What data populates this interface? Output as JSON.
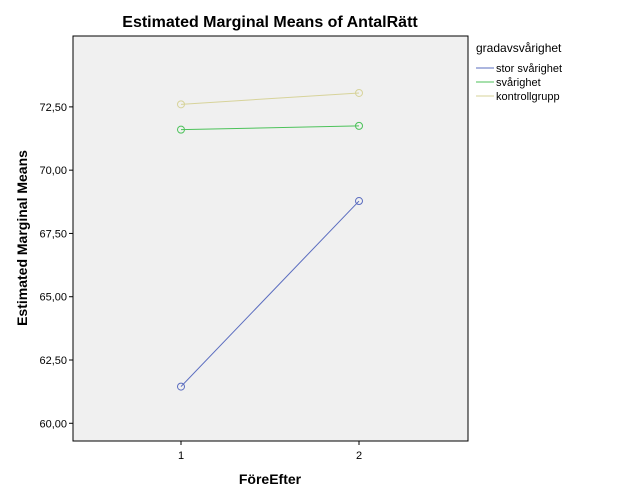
{
  "chart_data": {
    "type": "line",
    "title": "Estimated Marginal Means of AntalRätt",
    "xlabel": "FöreEfter",
    "ylabel": "Estimated Marginal Means",
    "categories": [
      "1",
      "2"
    ],
    "ylim": [
      59.3,
      75.3
    ],
    "yticks": [
      "60,00",
      "62,50",
      "65,00",
      "67,50",
      "70,00",
      "72,50"
    ],
    "ytick_values": [
      60,
      62.5,
      65,
      67.5,
      70,
      72.5
    ],
    "legend_title": "gradavsvårighet",
    "legend_position": "right",
    "grid": false,
    "plot_background": "#f0f0f0",
    "series": [
      {
        "name": "stor svårighet",
        "values": [
          61.45,
          68.78
        ],
        "color": "#5a6cbf"
      },
      {
        "name": "svårighet",
        "values": [
          71.6,
          71.75
        ],
        "color": "#4cc25a"
      },
      {
        "name": "kontrollgrupp",
        "values": [
          72.6,
          73.05
        ],
        "color": "#d7d39a"
      }
    ]
  }
}
